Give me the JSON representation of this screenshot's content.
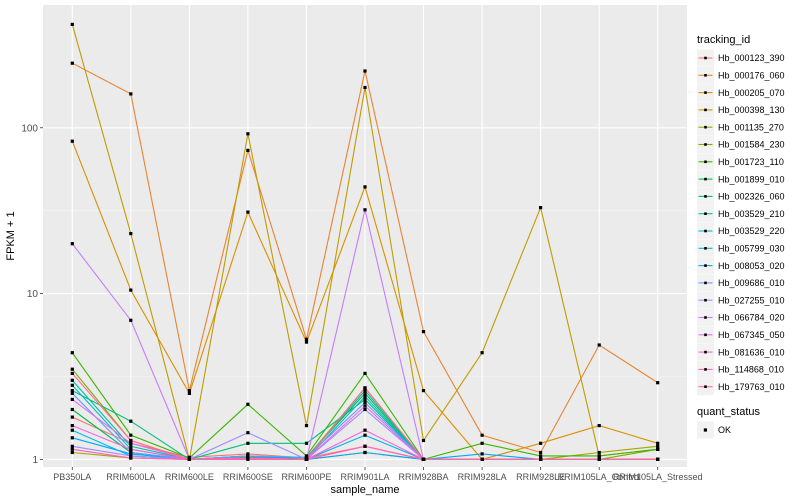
{
  "chart_data": {
    "type": "line",
    "xlabel": "sample_name",
    "ylabel": "FPKM + 1",
    "y_scale": "log10",
    "ylim": [
      0.9,
      550
    ],
    "y_ticks": [
      {
        "value": 1,
        "label": "1"
      },
      {
        "value": 10,
        "label": "10"
      },
      {
        "value": 100,
        "label": "100"
      }
    ],
    "categories": [
      "PB350LA",
      "RRIM600LA",
      "RRIM600LE",
      "RRIM600SE",
      "RRIM600PE",
      "RRIM901LA",
      "RRIM928BA",
      "RRIM928LA",
      "RRIM928LE",
      "RRIM105LA_Control",
      "RRIM105LA_Stressed"
    ],
    "grid": true,
    "legend": {
      "title": "tracking_id",
      "position": "right"
    },
    "series": [
      {
        "name": "Hb_000123_390",
        "color": "#F8766D",
        "values": [
          1.8,
          1.25,
          1.03,
          1.08,
          1.02,
          1.2,
          1.0,
          1.0,
          1.0,
          1.0,
          1.0
        ]
      },
      {
        "name": "Hb_000176_060",
        "color": "#EA8331",
        "values": [
          245,
          160,
          2.6,
          73,
          5.3,
          220,
          5.9,
          1.4,
          1.1,
          4.9,
          2.9
        ]
      },
      {
        "name": "Hb_000205_070",
        "color": "#D89000",
        "values": [
          83,
          10.5,
          2.5,
          31,
          5.1,
          44,
          2.6,
          1.0,
          1.25,
          1.6,
          1.25
        ]
      },
      {
        "name": "Hb_000398_130",
        "color": "#C09B00",
        "values": [
          420,
          23,
          1.0,
          92,
          1.6,
          175,
          1.3,
          4.4,
          33,
          1.05,
          1.15
        ]
      },
      {
        "name": "Hb_001135_270",
        "color": "#A3A500",
        "values": [
          1.1,
          1.02,
          1.0,
          1.02,
          1.0,
          1.1,
          1.0,
          1.0,
          1.0,
          1.1,
          1.2
        ]
      },
      {
        "name": "Hb_001584_230",
        "color": "#7CAE00",
        "values": [
          3.5,
          1.3,
          1.0,
          1.02,
          1.02,
          2.7,
          1.0,
          1.0,
          1.0,
          1.0,
          1.15
        ]
      },
      {
        "name": "Hb_001723_110",
        "color": "#39B600",
        "values": [
          4.4,
          1.4,
          1.02,
          2.15,
          1.05,
          3.3,
          1.0,
          1.25,
          1.05,
          1.05,
          1.15
        ]
      },
      {
        "name": "Hb_001899_010",
        "color": "#00BB4E",
        "values": [
          2.0,
          1.1,
          1.0,
          1.03,
          1.03,
          2.5,
          1.0,
          1.0,
          1.0,
          1.0,
          1.0
        ]
      },
      {
        "name": "Hb_002326_060",
        "color": "#00BF7D",
        "values": [
          2.6,
          1.7,
          1.0,
          1.25,
          1.25,
          2.3,
          1.0,
          1.0,
          1.0,
          1.0,
          1.0
        ]
      },
      {
        "name": "Hb_003529_210",
        "color": "#00C1A3",
        "values": [
          3.0,
          1.2,
          1.0,
          1.05,
          1.02,
          2.6,
          1.0,
          1.0,
          1.0,
          1.0,
          1.0
        ]
      },
      {
        "name": "Hb_003529_220",
        "color": "#00BFC4",
        "values": [
          2.8,
          1.15,
          1.0,
          1.05,
          1.0,
          2.4,
          1.0,
          1.0,
          1.0,
          1.0,
          1.0
        ]
      },
      {
        "name": "Hb_005799_030",
        "color": "#00B8E5",
        "values": [
          1.5,
          1.05,
          1.0,
          1.02,
          1.0,
          1.4,
          1.0,
          1.0,
          1.0,
          1.0,
          1.0
        ]
      },
      {
        "name": "Hb_008053_020",
        "color": "#00A9FF",
        "values": [
          1.35,
          1.08,
          1.0,
          1.05,
          1.0,
          1.1,
          1.0,
          1.08,
          1.0,
          1.0,
          1.0
        ]
      },
      {
        "name": "Hb_009686_010",
        "color": "#619CFF",
        "values": [
          2.5,
          1.1,
          1.0,
          1.05,
          1.03,
          2.2,
          1.0,
          1.0,
          1.0,
          1.0,
          1.0
        ]
      },
      {
        "name": "Hb_027255_010",
        "color": "#9F8CFF",
        "values": [
          1.2,
          1.05,
          1.0,
          1.45,
          1.0,
          2.0,
          1.0,
          1.0,
          1.0,
          1.0,
          1.0
        ]
      },
      {
        "name": "Hb_066784_020",
        "color": "#C77CFF",
        "values": [
          20,
          6.9,
          1.0,
          1.02,
          1.0,
          32,
          1.0,
          1.0,
          1.0,
          1.0,
          1.0
        ]
      },
      {
        "name": "Hb_067345_050",
        "color": "#E76BF3",
        "values": [
          2.3,
          1.25,
          1.0,
          1.02,
          1.0,
          2.1,
          1.0,
          1.0,
          1.0,
          1.0,
          1.0
        ]
      },
      {
        "name": "Hb_081636_010",
        "color": "#F763E0",
        "values": [
          1.6,
          1.15,
          1.0,
          1.02,
          1.0,
          1.5,
          1.0,
          1.0,
          1.0,
          1.0,
          1.0
        ]
      },
      {
        "name": "Hb_114868_010",
        "color": "#FF62BC",
        "values": [
          1.15,
          1.02,
          1.0,
          1.0,
          1.0,
          1.2,
          1.0,
          1.0,
          1.0,
          1.0,
          1.0
        ]
      },
      {
        "name": "Hb_179763_010",
        "color": "#FF6C91",
        "values": [
          3.3,
          1.3,
          1.0,
          1.02,
          1.0,
          2.7,
          1.0,
          1.0,
          1.0,
          1.0,
          1.0
        ]
      }
    ],
    "shape_legend": {
      "title": "quant_status",
      "items": [
        {
          "label": "OK",
          "shape": "square",
          "color": "#000000"
        }
      ]
    }
  }
}
